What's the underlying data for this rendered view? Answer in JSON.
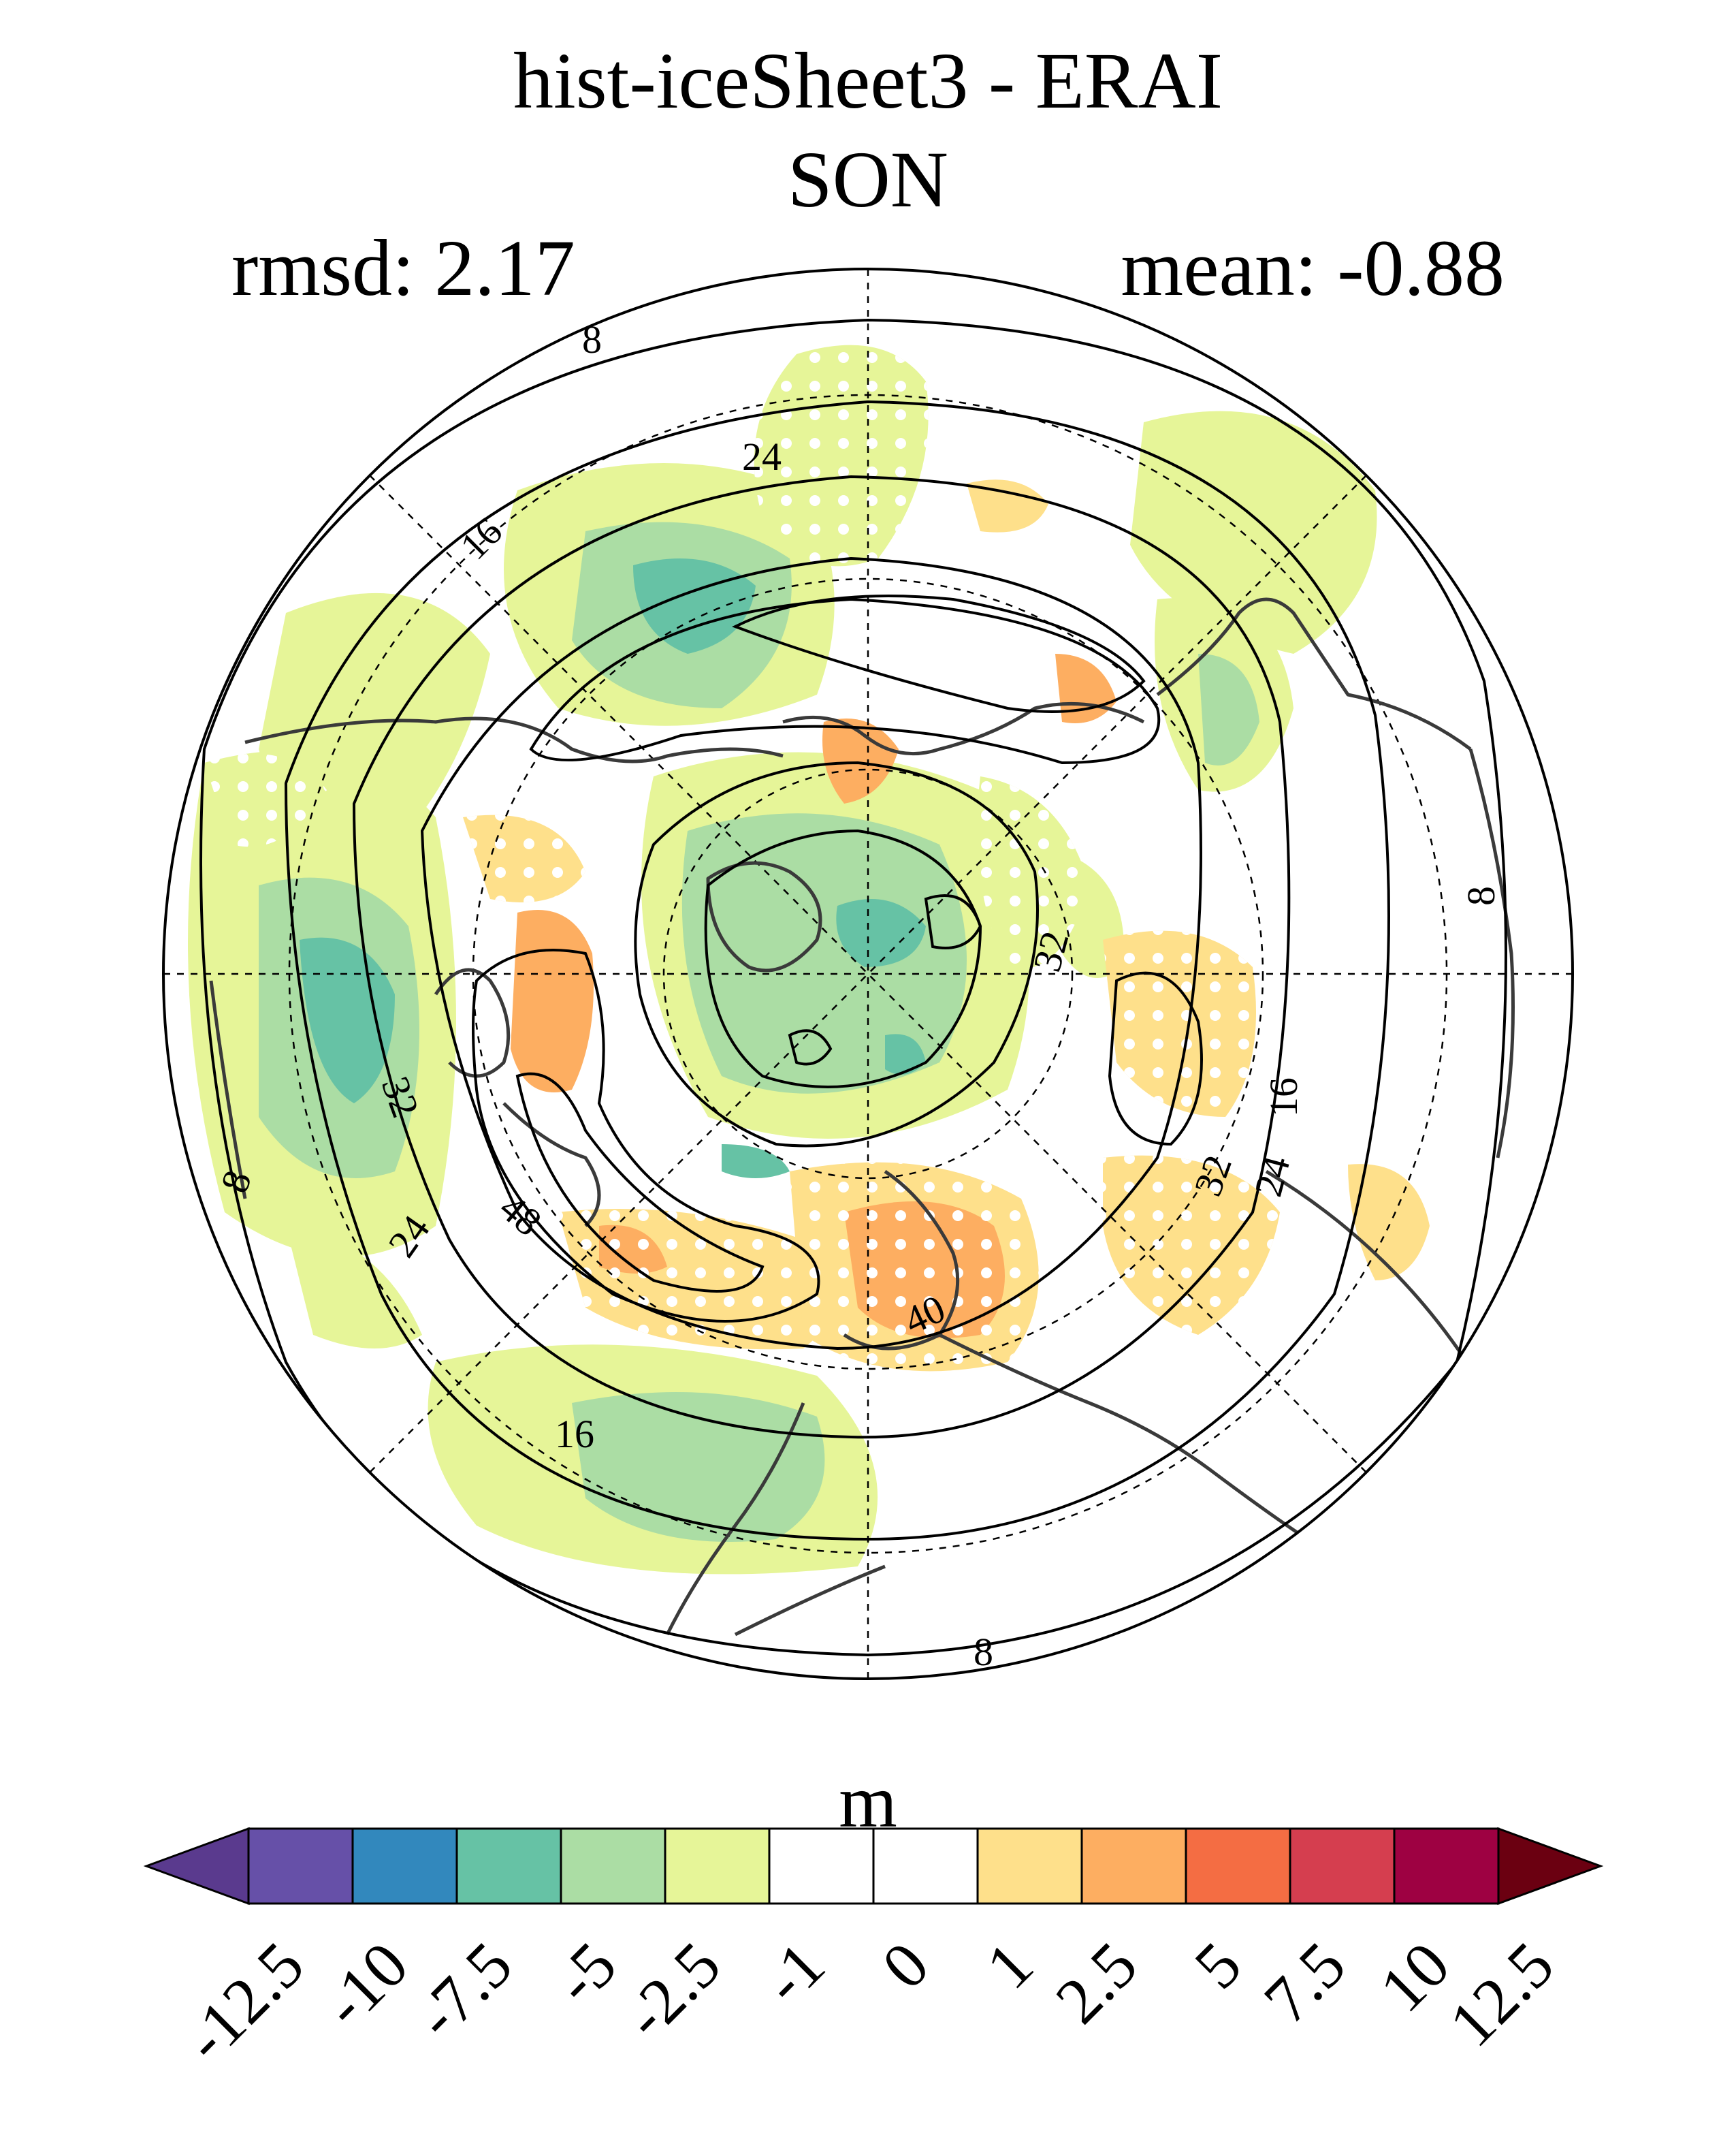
{
  "title": "hist-iceSheet3 - ERAI",
  "season": "SON",
  "rmsd_label": "rmsd: 2.17",
  "mean_label": "mean: -0.88",
  "colorbar": {
    "units": "m",
    "ticks": [
      "-12.5",
      "-10",
      "-7.5",
      "-5",
      "-2.5",
      "-1",
      "0",
      "1",
      "2.5",
      "5",
      "7.5",
      "10",
      "12.5"
    ],
    "colors": [
      "#5a3a8e",
      "#6650a8",
      "#3288bd",
      "#66c2a5",
      "#abdda4",
      "#e6f598",
      "#ffffff",
      "#ffffff",
      "#fee08b",
      "#fdae61",
      "#f46d43",
      "#d53e4f",
      "#9e0142",
      "#6b0011"
    ],
    "extend": "both"
  },
  "contours": {
    "labels": [
      "8",
      "8",
      "8",
      "8",
      "16",
      "16",
      "16",
      "24",
      "24",
      "24",
      "32",
      "32",
      "32",
      "40",
      "48"
    ]
  },
  "colors": {
    "green_light": "#e6f598",
    "green_mid": "#abdda4",
    "teal": "#66c2a5",
    "yellow": "#fee08b",
    "orange": "#fdae61",
    "coast": "#3a3a3a"
  }
}
